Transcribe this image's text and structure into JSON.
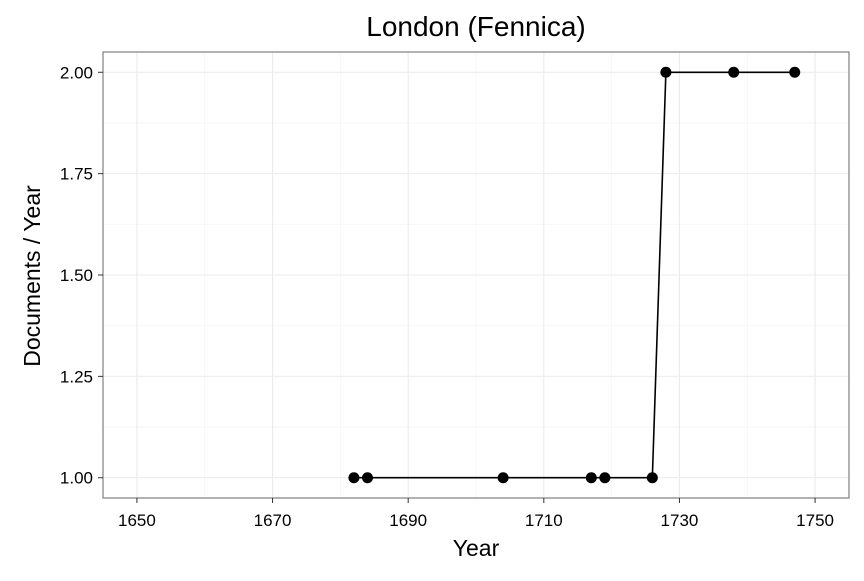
{
  "chart_data": {
    "type": "line",
    "title": "London (Fennica)",
    "xlabel": "Year",
    "ylabel": "Documents / Year",
    "xlim": [
      1645,
      1755
    ],
    "ylim": [
      0.95,
      2.05
    ],
    "x_ticks": [
      1650,
      1670,
      1690,
      1710,
      1730,
      1750
    ],
    "y_ticks": [
      1.0,
      1.25,
      1.5,
      1.75,
      2.0
    ],
    "y_tick_labels": [
      "1.00",
      "1.25",
      "1.50",
      "1.75",
      "2.00"
    ],
    "x_tick_labels": [
      "1650",
      "1670",
      "1690",
      "1710",
      "1730",
      "1750"
    ],
    "grid": true,
    "series": [
      {
        "x": [
          1682,
          1684,
          1704,
          1717,
          1719,
          1726,
          1728,
          1738,
          1747
        ],
        "y": [
          1,
          1,
          1,
          1,
          1,
          1,
          2,
          2,
          2
        ]
      }
    ]
  }
}
